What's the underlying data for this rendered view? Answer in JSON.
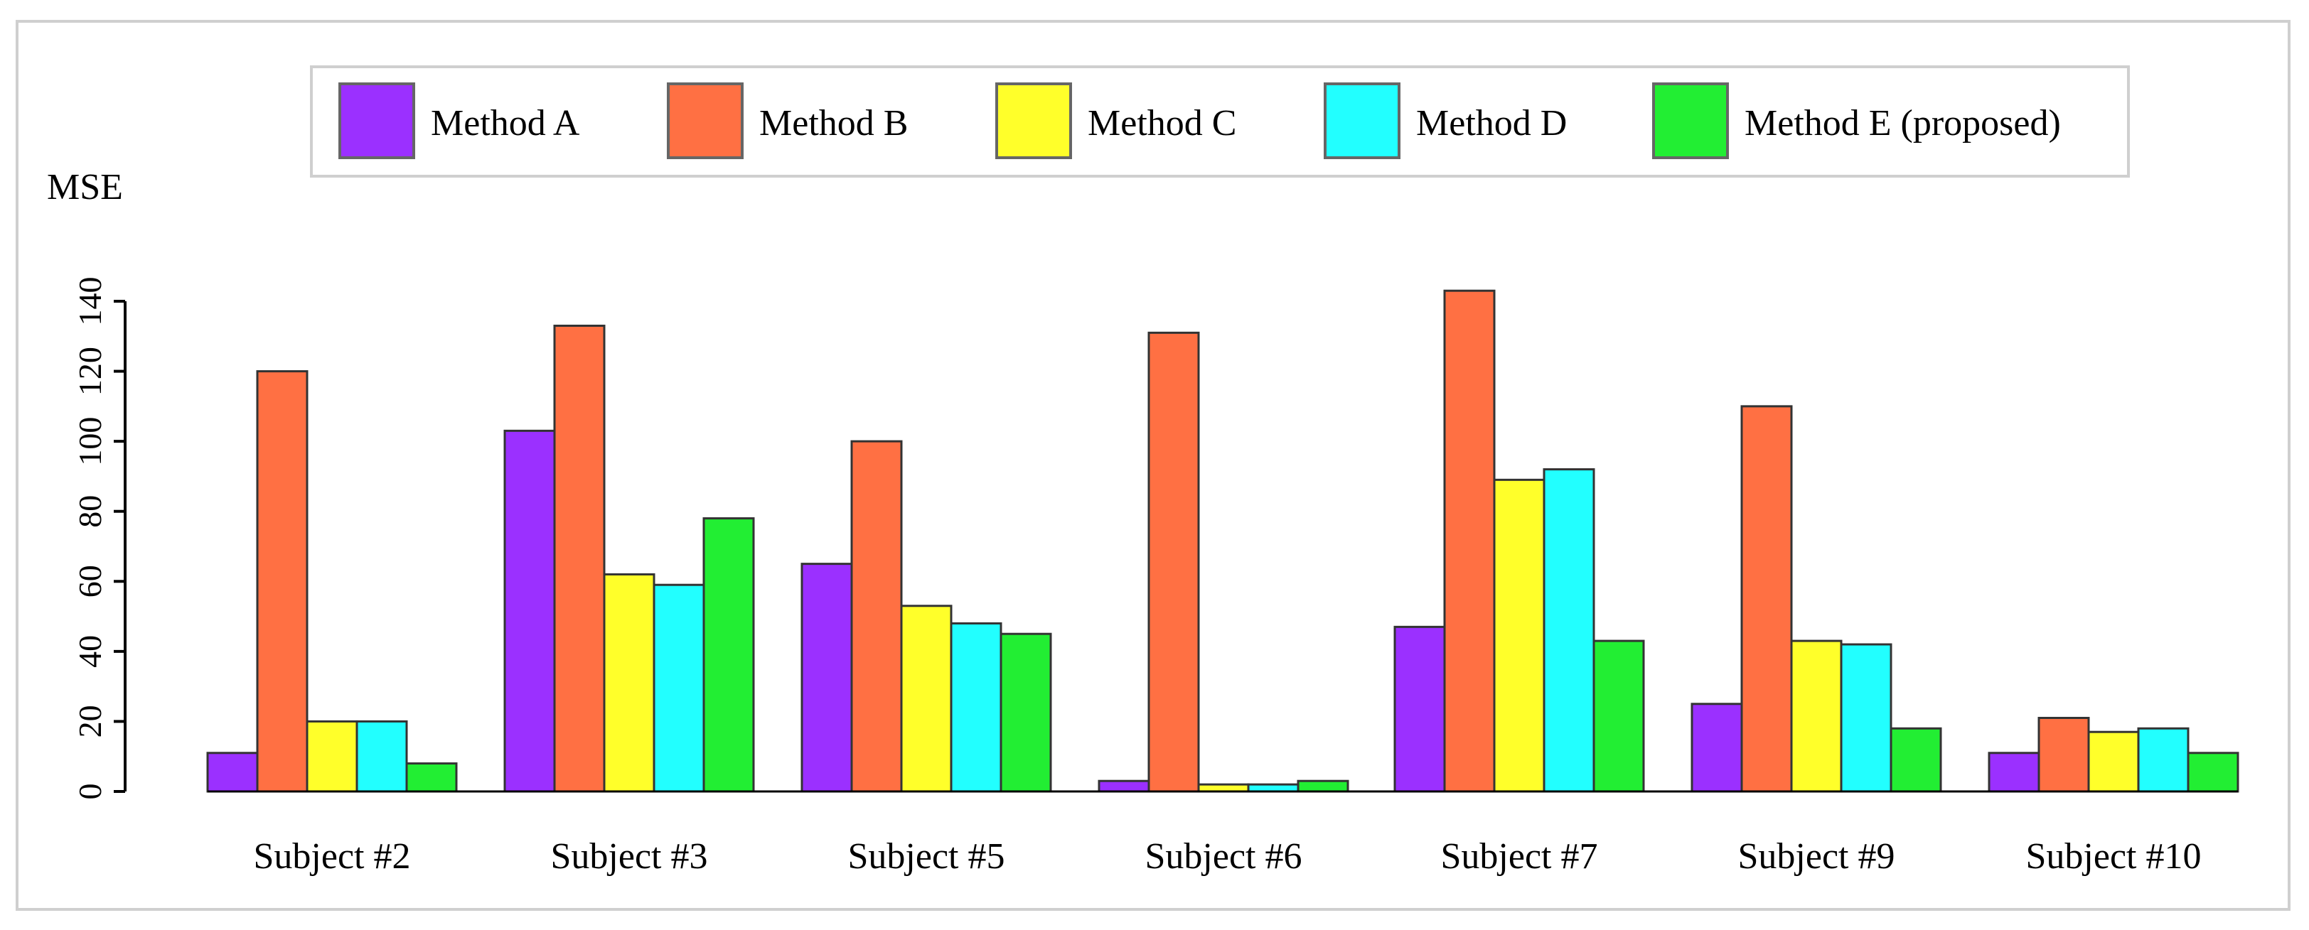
{
  "chart_data": {
    "type": "bar",
    "title": "",
    "xlabel": "",
    "ylabel": "MSE",
    "ylim": [
      0,
      140
    ],
    "yticks": [
      0,
      20,
      40,
      60,
      80,
      100,
      120,
      140
    ],
    "grid": false,
    "legend_position": "top",
    "categories": [
      "Subject #2",
      "Subject #3",
      "Subject #5",
      "Subject #6",
      "Subject #7",
      "Subject #9",
      "Subject #10"
    ],
    "series": [
      {
        "name": "Method A",
        "color": "#9b30ff",
        "values": [
          11,
          103,
          65,
          3,
          47,
          25,
          11
        ]
      },
      {
        "name": "Method B",
        "color": "#ff7043",
        "values": [
          120,
          133,
          100,
          131,
          143,
          110,
          21
        ]
      },
      {
        "name": "Method C",
        "color": "#ffff2a",
        "values": [
          20,
          62,
          53,
          2,
          89,
          43,
          17
        ]
      },
      {
        "name": "Method D",
        "color": "#22ffff",
        "values": [
          20,
          59,
          48,
          2,
          92,
          42,
          18
        ]
      },
      {
        "name": "Method E (proposed)",
        "color": "#22ee33",
        "values": [
          8,
          78,
          45,
          3,
          43,
          18,
          11
        ]
      }
    ]
  }
}
